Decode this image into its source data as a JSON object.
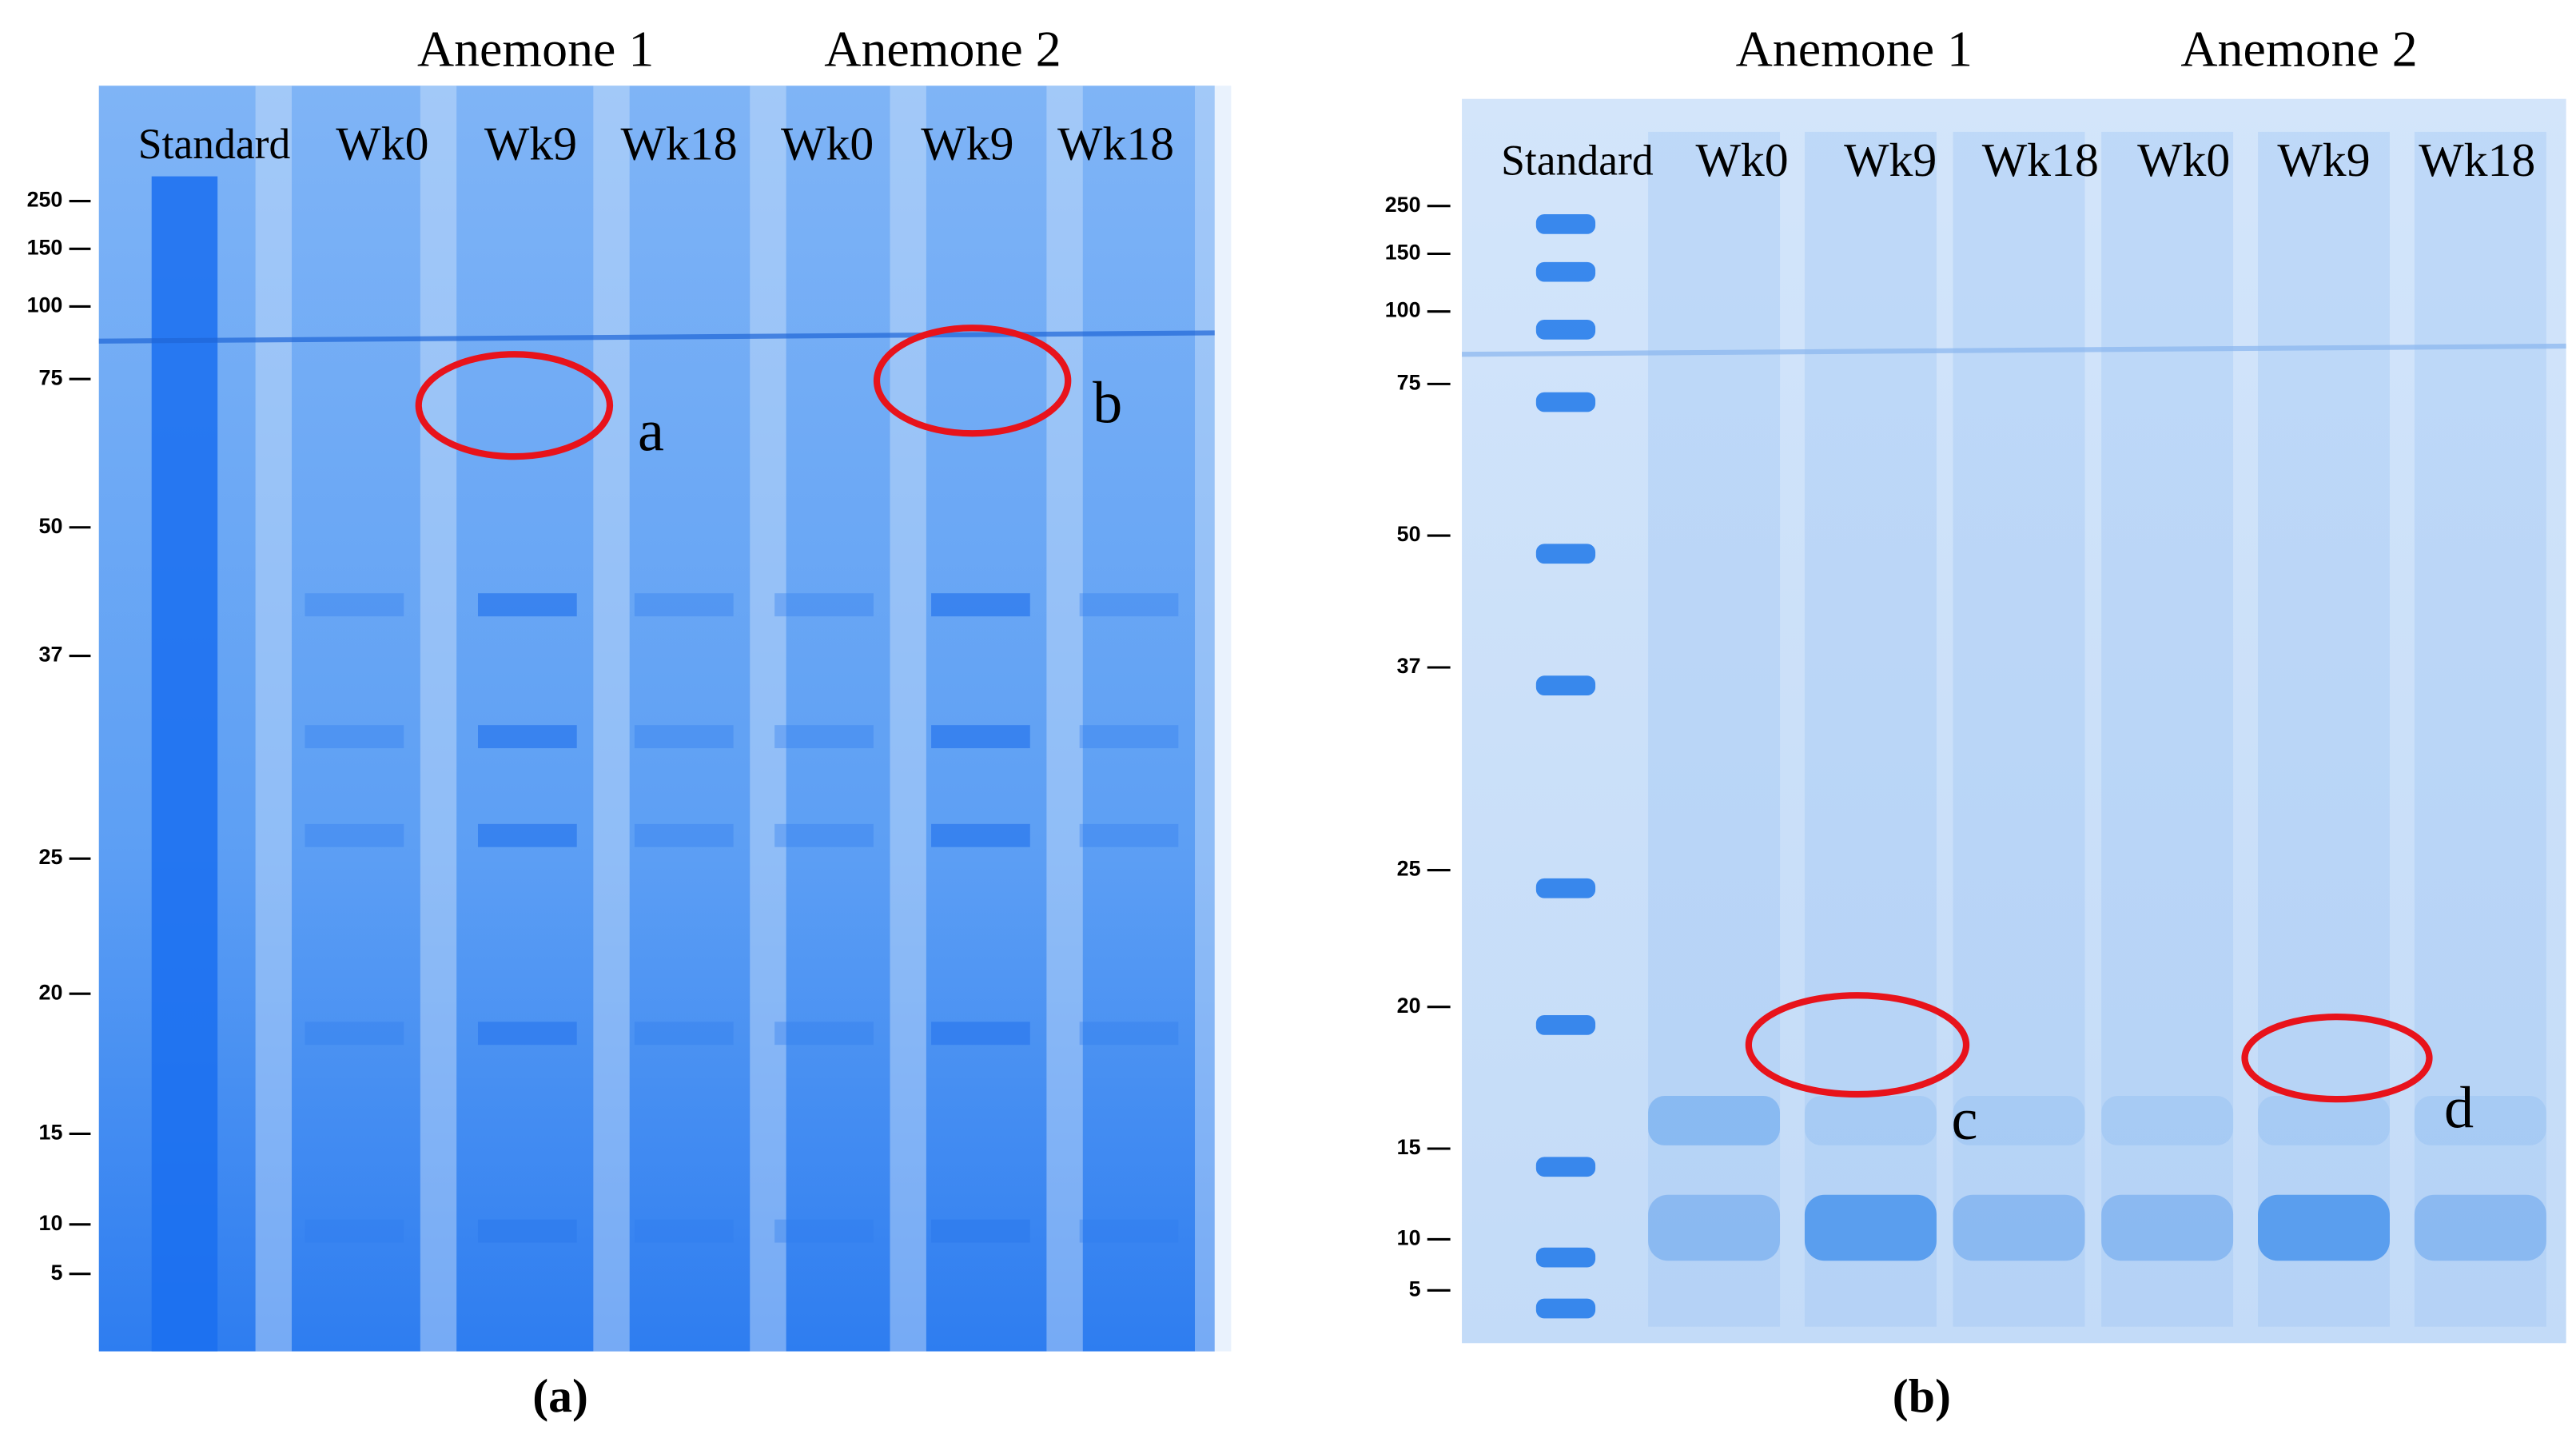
{
  "panels": [
    {
      "groups": [
        "Anemone 1",
        "Anemone 2"
      ],
      "lanes": [
        "Standard",
        "Wk0",
        "Wk9",
        "Wk18",
        "Wk0",
        "Wk9",
        "Wk18"
      ],
      "markers": [
        250,
        150,
        100,
        75,
        50,
        37,
        25,
        20,
        15,
        10,
        5
      ],
      "annotations": [
        "a",
        "b"
      ],
      "caption": "(a)"
    },
    {
      "groups": [
        "Anemone 1",
        "Anemone 2"
      ],
      "lanes": [
        "Standard",
        "Wk0",
        "Wk9",
        "Wk18",
        "Wk0",
        "Wk9",
        "Wk18"
      ],
      "markers": [
        250,
        150,
        100,
        75,
        50,
        37,
        25,
        20,
        15,
        10,
        5
      ],
      "annotations": [
        "c",
        "d"
      ],
      "caption": "(b)"
    }
  ]
}
